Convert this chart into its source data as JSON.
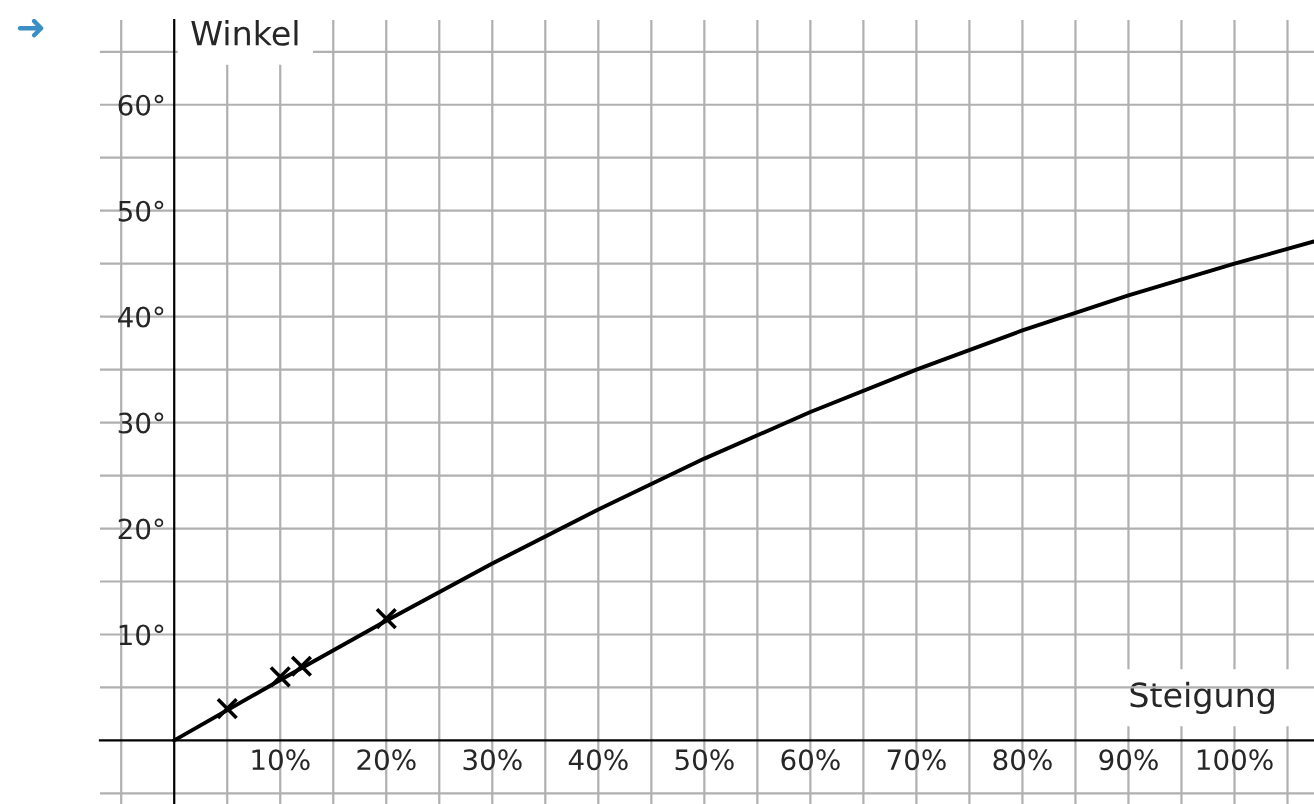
{
  "chart_data": {
    "type": "line",
    "xlabel": "Steigung",
    "ylabel": "Winkel",
    "annotations": [
      "➜"
    ],
    "series": [
      {
        "color": "#000000",
        "marker": "none",
        "x": [
          0,
          10,
          20,
          30,
          40,
          50,
          60,
          70,
          80,
          90,
          100,
          107.5
        ],
        "values": [
          0,
          5.7,
          11.3,
          16.7,
          21.8,
          26.6,
          31.0,
          35.0,
          38.7,
          42.0,
          45.0,
          47.1
        ]
      },
      {
        "type": "scatter",
        "color": "#000000",
        "marker": "cross",
        "x": [
          5,
          10,
          12,
          20
        ],
        "values": [
          3,
          6,
          7,
          11.5
        ]
      }
    ],
    "xlim": [
      -7,
      107.5
    ],
    "ylim": [
      -6,
      68
    ],
    "xticks": [
      {
        "value": -5,
        "label": null
      },
      {
        "value": 5,
        "label": null
      },
      {
        "value": 10,
        "label": "10%"
      },
      {
        "value": 15,
        "label": null
      },
      {
        "value": 20,
        "label": "20%"
      },
      {
        "value": 25,
        "label": null
      },
      {
        "value": 30,
        "label": "30%"
      },
      {
        "value": 35,
        "label": null
      },
      {
        "value": 40,
        "label": "40%"
      },
      {
        "value": 45,
        "label": null
      },
      {
        "value": 50,
        "label": "50%"
      },
      {
        "value": 55,
        "label": null
      },
      {
        "value": 60,
        "label": "60%"
      },
      {
        "value": 65,
        "label": null
      },
      {
        "value": 70,
        "label": "70%"
      },
      {
        "value": 75,
        "label": null
      },
      {
        "value": 80,
        "label": "80%"
      },
      {
        "value": 85,
        "label": null
      },
      {
        "value": 90,
        "label": "90%"
      },
      {
        "value": 95,
        "label": null
      },
      {
        "value": 100,
        "label": "100%"
      },
      {
        "value": 105,
        "label": null
      }
    ],
    "yticks": [
      {
        "value": -5,
        "label": null
      },
      {
        "value": 5,
        "label": null
      },
      {
        "value": 10,
        "label": "10°"
      },
      {
        "value": 15,
        "label": null
      },
      {
        "value": 20,
        "label": "20°"
      },
      {
        "value": 25,
        "label": null
      },
      {
        "value": 30,
        "label": "30°"
      },
      {
        "value": 35,
        "label": null
      },
      {
        "value": 40,
        "label": "40°"
      },
      {
        "value": 45,
        "label": null
      },
      {
        "value": 50,
        "label": "50°"
      },
      {
        "value": 55,
        "label": null
      },
      {
        "value": 60,
        "label": "60°"
      },
      {
        "value": 65,
        "label": null
      }
    ],
    "grid": true,
    "legend": false
  }
}
